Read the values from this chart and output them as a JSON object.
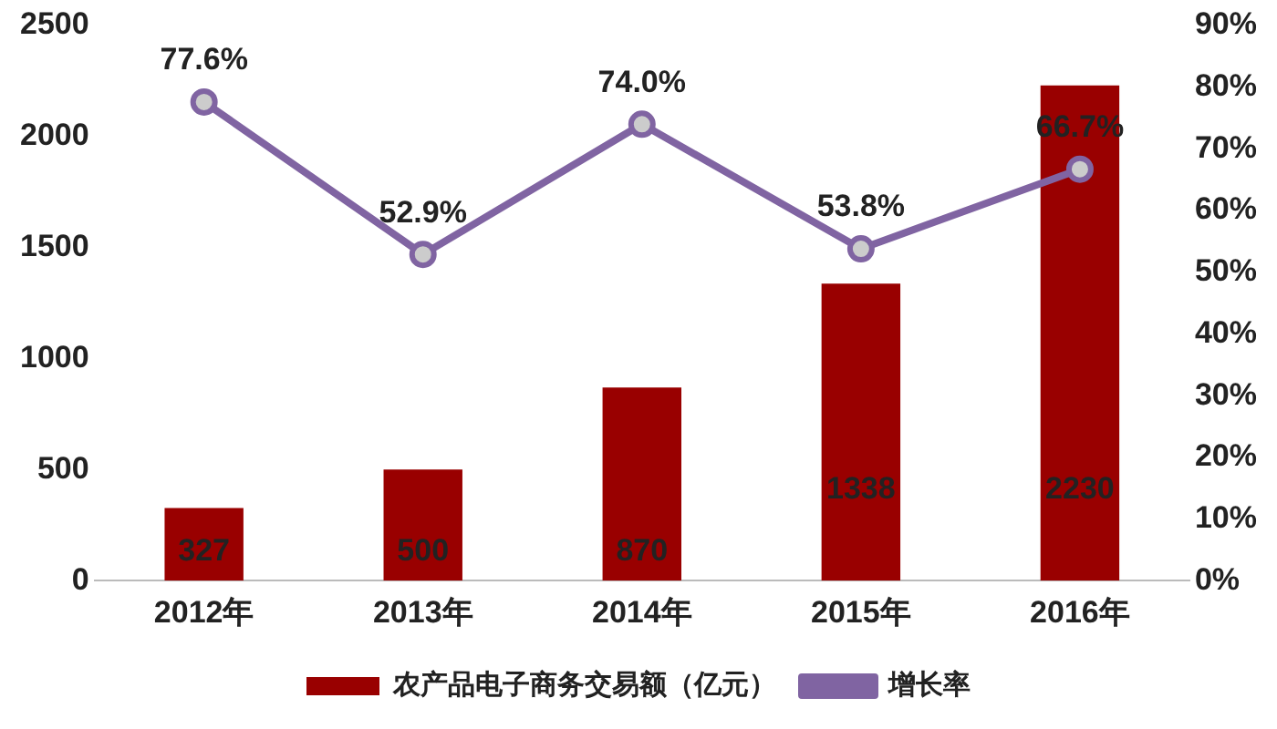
{
  "chart_data": {
    "type": "bar",
    "categories": [
      "2012年",
      "2013年",
      "2014年",
      "2015年",
      "2016年"
    ],
    "series": [
      {
        "name": "农产品电子商务交易额（亿元）",
        "color": "#990000",
        "values": [
          327,
          500,
          870,
          1338,
          2230
        ],
        "value_labels": [
          "327",
          "500",
          "870",
          "1338",
          "2230"
        ]
      },
      {
        "name": "增长率",
        "type": "line",
        "axis": "y2",
        "color": "#8064a2",
        "values": [
          77.6,
          52.9,
          74.0,
          53.8,
          66.7
        ],
        "value_labels": [
          "77.6%",
          "52.9%",
          "74.0%",
          "53.8%",
          "66.7%"
        ]
      }
    ],
    "ylim": [
      0,
      2500
    ],
    "yticks": [
      0,
      500,
      1000,
      1500,
      2000,
      2500
    ],
    "y2lim": [
      0,
      90
    ],
    "y2ticks": [
      {
        "value": 0,
        "label": "0%"
      },
      {
        "value": 10,
        "label": "10%"
      },
      {
        "value": 20,
        "label": "20%"
      },
      {
        "value": 30,
        "label": "30%"
      },
      {
        "value": 40,
        "label": "40%"
      },
      {
        "value": 50,
        "label": "50%"
      },
      {
        "value": 60,
        "label": "60%"
      },
      {
        "value": 70,
        "label": "70%"
      },
      {
        "value": 80,
        "label": "80%"
      },
      {
        "value": 90,
        "label": "90%"
      }
    ],
    "grid": false,
    "legend": "bottom",
    "marker": "circle",
    "line_style": "solid"
  }
}
